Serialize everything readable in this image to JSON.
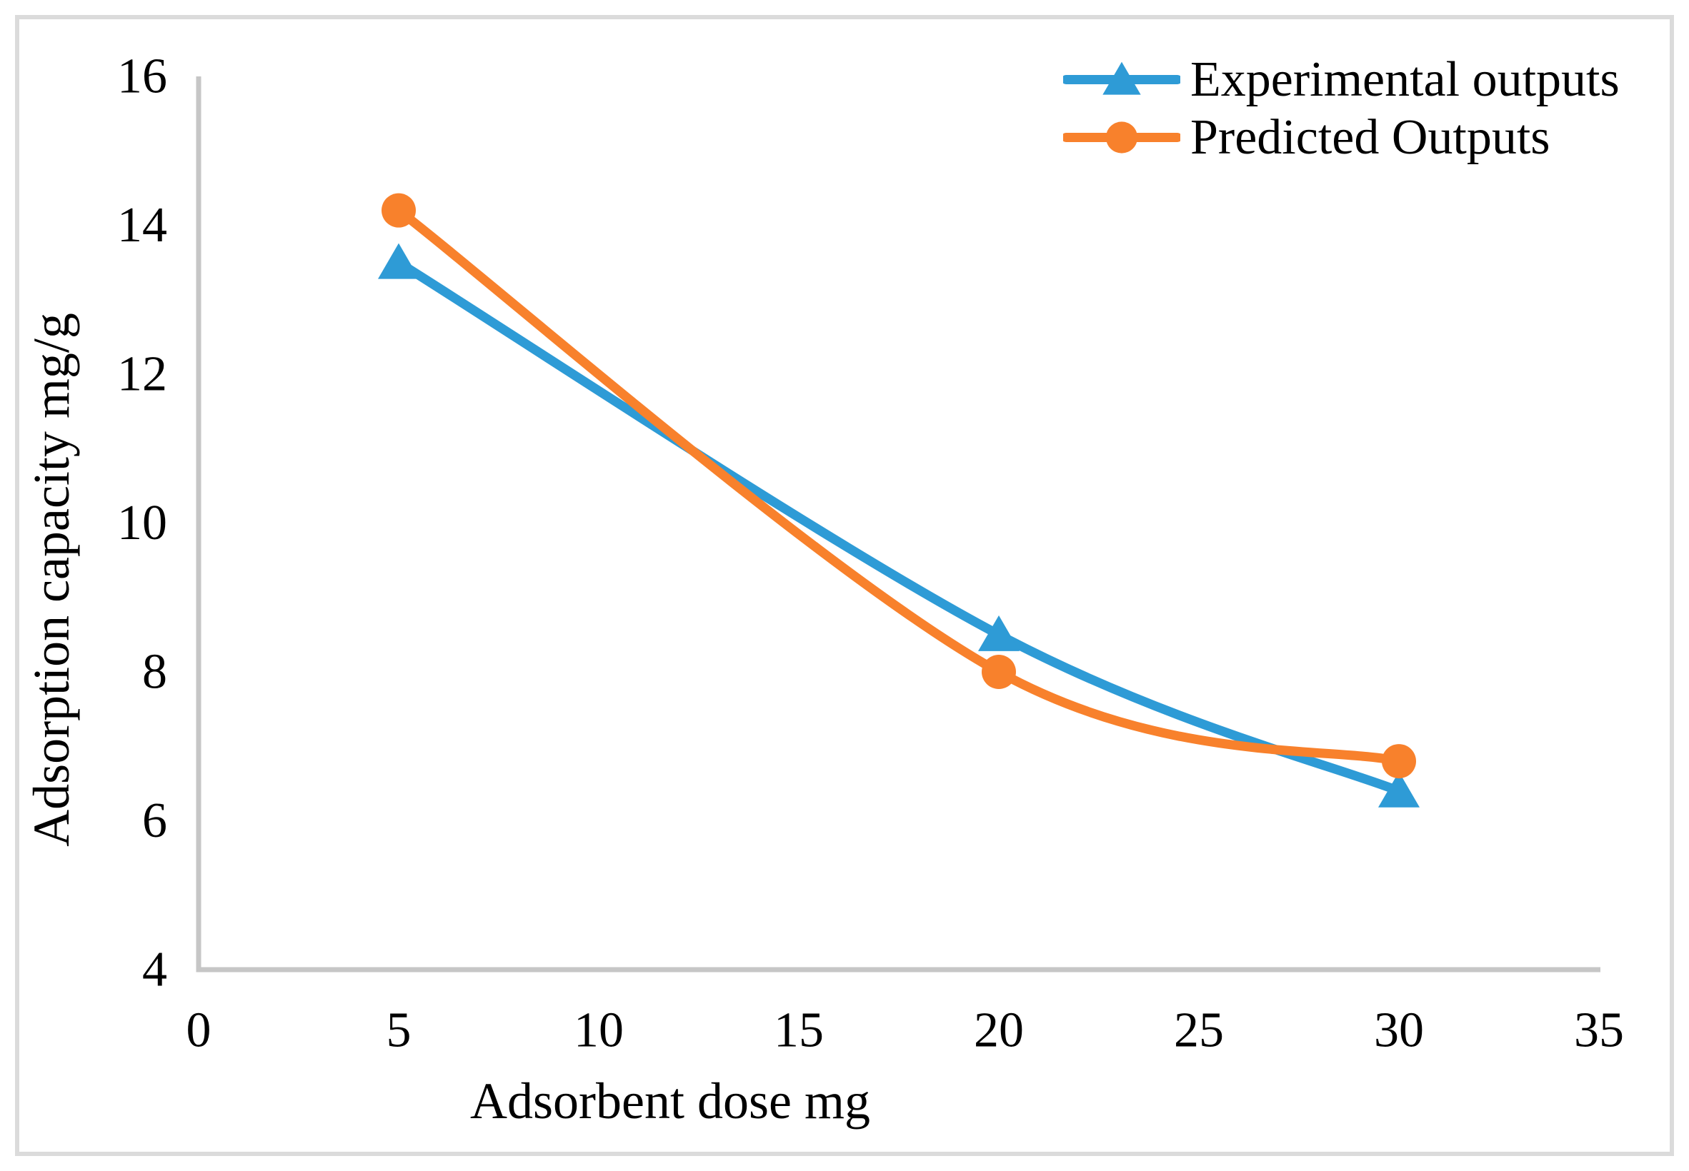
{
  "chart_data": {
    "type": "line",
    "title": "",
    "xlabel": "Adsorbent dose mg",
    "ylabel": "Adsorption capacity mg/g",
    "xlim": [
      0,
      35
    ],
    "ylim": [
      4,
      16
    ],
    "x_ticks": [
      0,
      5,
      10,
      15,
      20,
      25,
      30,
      35
    ],
    "y_ticks": [
      4,
      6,
      8,
      10,
      12,
      14,
      16
    ],
    "grid": false,
    "smooth_lines": true,
    "legend_position": "top-right",
    "x": [
      5,
      20,
      30
    ],
    "series": [
      {
        "name": "Experimental outputs",
        "values": [
          13.5,
          8.5,
          6.4
        ],
        "color": "#2E9BD6",
        "marker": "triangle"
      },
      {
        "name": "Predicted Outputs",
        "values": [
          14.2,
          8.0,
          6.8
        ],
        "color": "#F8812C",
        "marker": "circle"
      }
    ],
    "axis_color": "#C6C6C6",
    "text_color": "#000000",
    "frame_color": "#DBDBDB",
    "background_color": "#FFFFFF"
  }
}
